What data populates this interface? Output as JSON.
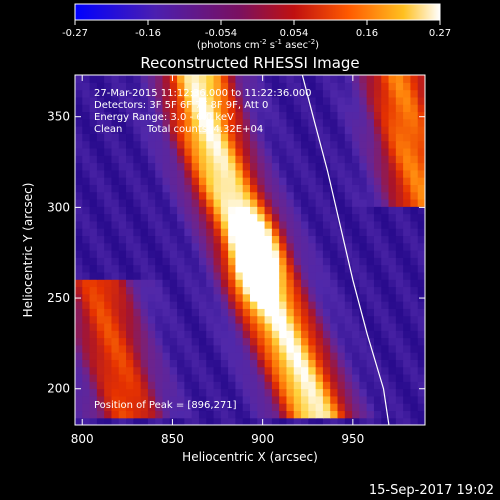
{
  "colorbar": {
    "ticks": [
      "-0.27",
      "-0.16",
      "-0.054",
      "0.054",
      "0.16",
      "0.27"
    ],
    "units_prefix": "(photons cm",
    "units_exp1": "-2",
    "units_mid": " s",
    "units_exp2": "-1",
    "units_mid2": " asec",
    "units_exp3": "-2",
    "units_suffix": ")"
  },
  "chart_data": {
    "type": "heatmap",
    "title": "Reconstructed RHESSI Image",
    "xlabel": "Heliocentric X (arcsec)",
    "ylabel": "Heliocentric Y (arcsec)",
    "xlim": [
      796,
      990
    ],
    "ylim": [
      180,
      373
    ],
    "xticks": [
      800,
      850,
      900,
      950
    ],
    "yticks": [
      200,
      250,
      300,
      350
    ],
    "value_range": [
      -0.27,
      0.27
    ],
    "colormap": "blue-purple-red-orange-yellow-white",
    "peak": [
      896,
      271
    ],
    "limb_curve": [
      [
        922,
        373
      ],
      [
        928,
        350
      ],
      [
        936,
        320
      ],
      [
        943,
        290
      ],
      [
        950,
        260
      ],
      [
        958,
        230
      ],
      [
        967,
        200
      ],
      [
        970,
        180
      ]
    ],
    "bands": [
      {
        "name": "main",
        "intensity": 0.9,
        "centerline": [
          [
            864,
            373
          ],
          [
            870,
            340
          ],
          [
            880,
            310
          ],
          [
            893,
            280
          ],
          [
            904,
            250
          ],
          [
            916,
            220
          ],
          [
            930,
            185
          ]
        ]
      },
      {
        "name": "secondary",
        "intensity": 0.55,
        "centerline": [
          [
            808,
            260
          ],
          [
            815,
            230
          ],
          [
            822,
            205
          ],
          [
            826,
            185
          ]
        ]
      },
      {
        "name": "top-right",
        "intensity": 0.65,
        "centerline": [
          [
            975,
            373
          ],
          [
            982,
            330
          ],
          [
            990,
            300
          ]
        ]
      }
    ]
  },
  "annotations": {
    "line1": "27-Mar-2015 11:12:36.000 to 11:22:36.000",
    "line2": "Detectors: 3F 5F 6F 7F 8F 9F, Att 0",
    "line3": "Energy Range: 3.0 - 6.0 keV",
    "line4_a": "Clean",
    "line4_b": "Total counts: 4.32E+04",
    "peak_text": "Position of Peak = [896,271]"
  },
  "footer": {
    "timestamp": "15-Sep-2017 19:02"
  }
}
